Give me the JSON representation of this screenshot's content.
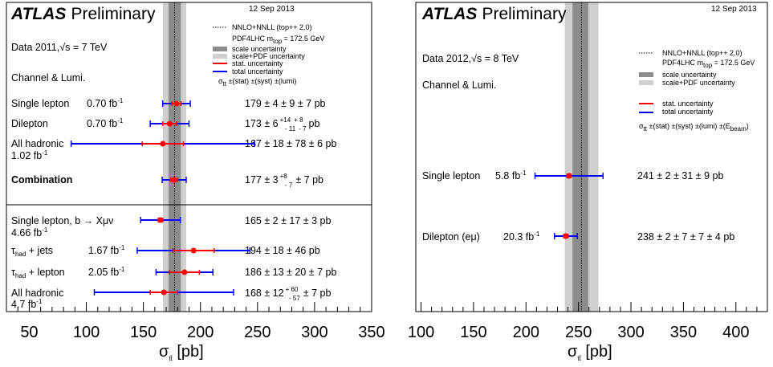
{
  "colors": {
    "scale_band": "#8c8c8c",
    "scale_pdf_band": "#cfcfcf",
    "stat": "#ff0000",
    "total": "#0000ff",
    "point": "#ff0000",
    "theory_line": "#000000"
  },
  "chart_data": [
    {
      "type": "scatter",
      "panel": "7 TeV",
      "title_bold": "ATLAS",
      "title": "Preliminary",
      "date": "12 Sep 2013",
      "dataset": "Data 2011,√s = 7 TeV",
      "channel_header": "Channel & Lumi.",
      "xlabel": "σtt̄ [pb]",
      "xlim": [
        30,
        350
      ],
      "xticks": [
        50,
        100,
        150,
        200,
        250,
        300,
        350
      ],
      "theory": {
        "central": 177.3,
        "scale_band": [
          172,
          182.8
        ],
        "scale_pdf_band": [
          167.1,
          187.5
        ]
      },
      "legend": {
        "theory": "NNLO+NNLL (top++ 2.0)",
        "pdf": "PDF4LHC m",
        "pdf_sub": "top",
        "pdf_tail": " = 172.5 GeV",
        "scale": "scale uncertainty",
        "scale_pdf": "scale+PDF uncertainty",
        "stat": "stat. uncertainty",
        "total": "total uncertainty",
        "format": "σ",
        "format_sub": "tt",
        "format_tail": " ±(stat) ±(syst) ±(lumi)"
      },
      "measurements": [
        {
          "label": "Single lepton",
          "lumi": "0.70 fb",
          "lumi_sup": "-1",
          "value_text": "179 ± 4 ± 9 ± 7 pb",
          "value": 179,
          "stat": 4,
          "total": 12.1
        },
        {
          "label": "Dilepton",
          "lumi": "0.70 fb",
          "lumi_sup": "-1",
          "value_text": "173 ± 6",
          "syst_up": "+14",
          "syst_down": "- 11",
          "lumi_up": "+ 8",
          "lumi_down": "- 7",
          "value_tail": "pb",
          "value": 173,
          "stat": 6,
          "total": 17
        },
        {
          "label": "All hadronic",
          "lumi": "1.02 fb",
          "lumi_sup": "-1",
          "value_text": "167 ± 18 ± 78 ± 6 pb",
          "value": 167,
          "stat": 18,
          "total": 80.3
        },
        {
          "label": "Combination",
          "bold": true,
          "value_text": "177 ± 3",
          "syst_up": "+8",
          "syst_down": "- 7",
          "value_tail": "± 7 pb",
          "value": 177,
          "stat": 3,
          "total": 10.5
        },
        {
          "label": "Single lepton, b → Xμν",
          "lumi": "4.66 fb",
          "lumi_sup": "-1",
          "value_text": "165 ± 2 ± 17 ± 3 pb",
          "value": 165,
          "stat": 2,
          "total": 17.4
        },
        {
          "label": "τ",
          "label_sub": "had",
          "label_tail": " + jets",
          "lumi": "1.67 fb",
          "lumi_sup": "-1",
          "value_text": "194 ± 18 ± 46 pb",
          "value": 194,
          "stat": 18,
          "total": 49.4
        },
        {
          "label": "τ",
          "label_sub": "had",
          "label_tail": " + lepton",
          "lumi": "2.05 fb",
          "lumi_sup": "-1",
          "value_text": "186 ± 13 ± 20 ± 7 pb",
          "value": 186,
          "stat": 13,
          "total": 24.9
        },
        {
          "label": "All hadronic",
          "lumi": "4.7 fb",
          "lumi_sup": "-1",
          "value_text": "168 ± 12",
          "syst_up": "+ 60",
          "syst_down": "- 57",
          "value_tail": "± 7 pb",
          "value": 168,
          "stat": 12,
          "total": 61
        }
      ]
    },
    {
      "type": "scatter",
      "panel": "8 TeV",
      "title_bold": "ATLAS",
      "title": "Preliminary",
      "date": "12 Sep 2013",
      "dataset": "Data 2012,√s = 8 TeV",
      "channel_header": "Channel & Lumi.",
      "xlabel": "σtt̄ [pb]",
      "xlim": [
        95,
        430
      ],
      "xticks": [
        100,
        150,
        200,
        250,
        300,
        350,
        400
      ],
      "theory": {
        "central": 252.9,
        "scale_band": [
          244.3,
          259.3
        ],
        "scale_pdf_band": [
          237,
          269
        ]
      },
      "legend": {
        "theory": "NNLO+NNLL (top++ 2.0)",
        "pdf": "PDF4LHC m",
        "pdf_sub": "top",
        "pdf_tail": " = 172.5 GeV",
        "scale": "scale uncertainty",
        "scale_pdf": "scale+PDF uncertainty",
        "stat": "stat. uncertainty",
        "total": "total uncertainty",
        "format": "σ",
        "format_sub": "tt",
        "format_tail": " ±(stat) ±(syst) ±(lumi) ±(E",
        "format_sub2": "beam",
        "format_end": ")"
      },
      "measurements": [
        {
          "label": "Single lepton",
          "lumi": "5.8 fb",
          "lumi_sup": "-1",
          "value_text": "241 ± 2 ± 31 ± 9 pb",
          "value": 241,
          "stat": 2,
          "total": 32.4
        },
        {
          "label": "Dilepton (eμ)",
          "lumi": "20.3 fb",
          "lumi_sup": "-1",
          "value_text": "238 ± 2 ± 7 ± 7 ± 4 pb",
          "value": 238,
          "stat": 2,
          "total": 10.9
        }
      ]
    }
  ]
}
